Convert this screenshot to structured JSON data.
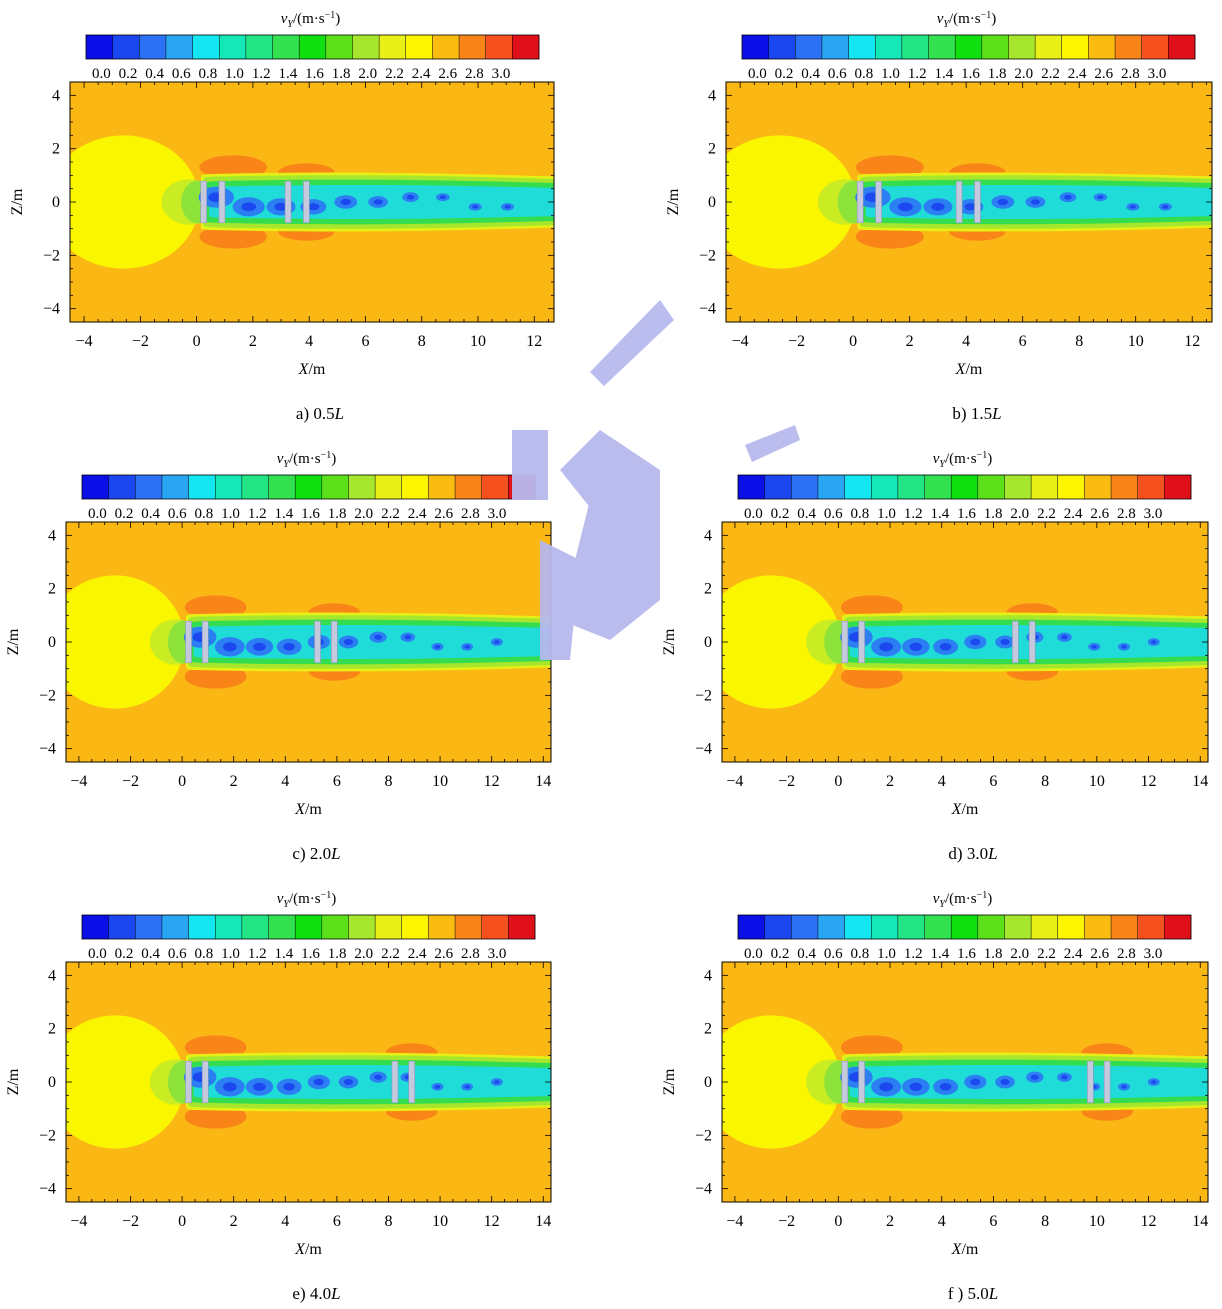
{
  "figure": {
    "colorbar_label_v": "v",
    "colorbar_label_sub": "Y",
    "colorbar_label_rest": "/(m·s",
    "colorbar_label_sup": "−1",
    "colorbar_label_close": ")",
    "colorbar_ticks": [
      "0.0",
      "0.2",
      "0.4",
      "0.6",
      "0.8",
      "1.0",
      "1.2",
      "1.4",
      "1.6",
      "1.8",
      "2.0",
      "2.2",
      "2.4",
      "2.6",
      "2.8",
      "3.0"
    ],
    "colorbar_colors": [
      "#0a0fe8",
      "#1b47f0",
      "#2b72f5",
      "#2aa6f2",
      "#14e6f2",
      "#14e8b8",
      "#22e685",
      "#33e04f",
      "#10e010",
      "#5be019",
      "#a6e62c",
      "#e8f015",
      "#fbf500",
      "#fbbc12",
      "#f98418",
      "#f7511f",
      "#e0101a"
    ],
    "colors": {
      "background": "#fbb714",
      "upstream": "#f9f600",
      "side_lobe": "#f98418",
      "wake_outer": "#a6e62c",
      "wake_green": "#33dd4f",
      "wake_cyan": "#1fdcd8",
      "wake_blue": "#2c7ff2",
      "wake_deep": "#1b48ef",
      "panel": "#c5c9de",
      "watermark": "#b7b9ee"
    }
  },
  "chart_data": [
    {
      "type": "heatmap",
      "caption": "a) 0.5",
      "caption_unit": "L",
      "xlabel": "X",
      "xunit": "/m",
      "ylabel": "Z/m",
      "xlim": [
        -4.5,
        12.7
      ],
      "ylim": [
        -4.5,
        4.5
      ],
      "xticks": [
        -4,
        -2,
        0,
        2,
        4,
        6,
        8,
        10,
        12
      ],
      "yticks": [
        -4,
        -2,
        0,
        2,
        4
      ],
      "rotor_x": [
        0,
        3.0
      ],
      "colorbar": true
    },
    {
      "type": "heatmap",
      "caption": "b) 1.5",
      "caption_unit": "L",
      "xlabel": "X",
      "xunit": "/m",
      "ylabel": "Z/m",
      "xlim": [
        -4.5,
        12.7
      ],
      "ylim": [
        -4.5,
        4.5
      ],
      "xticks": [
        -4,
        -2,
        0,
        2,
        4,
        6,
        8,
        10,
        12
      ],
      "yticks": [
        -4,
        -2,
        0,
        2,
        4
      ],
      "rotor_x": [
        0,
        3.5
      ],
      "colorbar": true
    },
    {
      "type": "heatmap",
      "caption": "c) 2.0",
      "caption_unit": "L",
      "xlabel": "X",
      "xunit": "/m",
      "ylabel": "Z/m",
      "xlim": [
        -4.5,
        14.3
      ],
      "ylim": [
        -4.5,
        4.5
      ],
      "xticks": [
        -4,
        -2,
        0,
        2,
        4,
        6,
        8,
        10,
        12,
        14
      ],
      "yticks": [
        -4,
        -2,
        0,
        2,
        4
      ],
      "rotor_x": [
        0,
        5.0
      ],
      "colorbar": true
    },
    {
      "type": "heatmap",
      "caption": "d) 3.0",
      "caption_unit": "L",
      "xlabel": "X",
      "xunit": "/m",
      "ylabel": "Z/m",
      "xlim": [
        -4.5,
        14.3
      ],
      "ylim": [
        -4.5,
        4.5
      ],
      "xticks": [
        -4,
        -2,
        0,
        2,
        4,
        6,
        8,
        10,
        12,
        14
      ],
      "yticks": [
        -4,
        -2,
        0,
        2,
        4
      ],
      "rotor_x": [
        0,
        6.6
      ],
      "colorbar": true
    },
    {
      "type": "heatmap",
      "caption": "e) 4.0",
      "caption_unit": "L",
      "xlabel": "X",
      "xunit": "/m",
      "ylabel": "Z/m",
      "xlim": [
        -4.5,
        14.3
      ],
      "ylim": [
        -4.5,
        4.5
      ],
      "xticks": [
        -4,
        -2,
        0,
        2,
        4,
        6,
        8,
        10,
        12,
        14
      ],
      "yticks": [
        -4,
        -2,
        0,
        2,
        4
      ],
      "rotor_x": [
        0,
        8.0
      ],
      "colorbar": true
    },
    {
      "type": "heatmap",
      "caption": "f ) 5.0",
      "caption_unit": "L",
      "xlabel": "X",
      "xunit": "/m",
      "ylabel": "Z/m",
      "xlim": [
        -4.5,
        14.3
      ],
      "ylim": [
        -4.5,
        4.5
      ],
      "xticks": [
        -4,
        -2,
        0,
        2,
        4,
        6,
        8,
        10,
        12,
        14
      ],
      "yticks": [
        -4,
        -2,
        0,
        2,
        4
      ],
      "rotor_x": [
        0,
        9.5
      ],
      "colorbar": true
    }
  ]
}
